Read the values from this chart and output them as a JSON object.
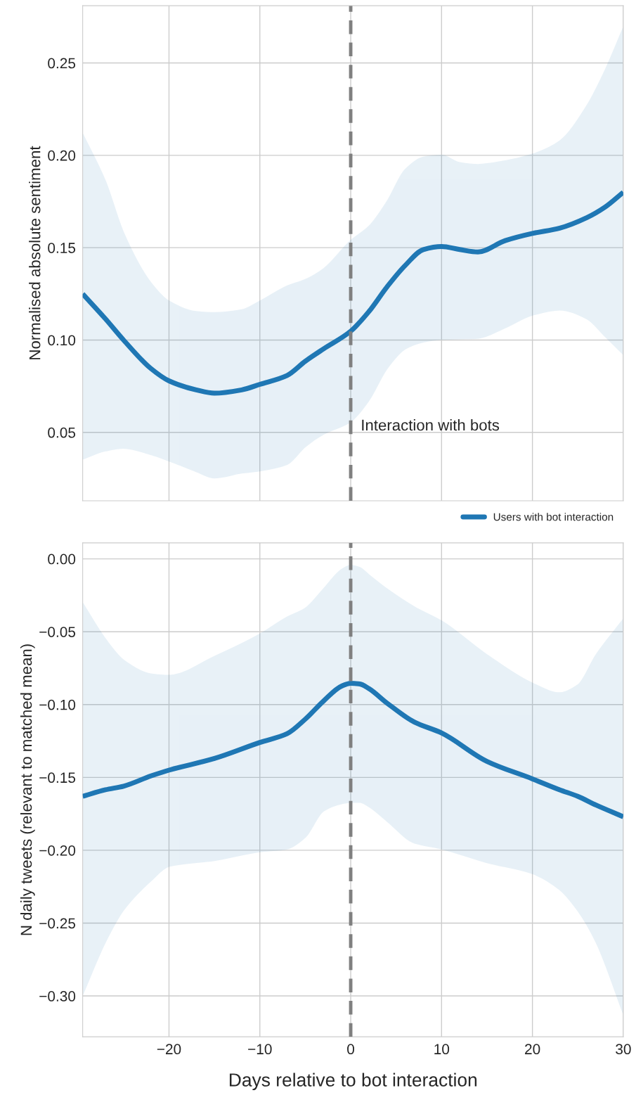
{
  "chart_data": [
    {
      "type": "line",
      "ylabel": "Normalised absolute sentiment",
      "xlim": [
        -29.5,
        30
      ],
      "ylim": [
        0.013,
        0.281
      ],
      "xticks": [
        -20,
        -10,
        0,
        10,
        20,
        30
      ],
      "yticks": [
        0.05,
        {
          "value": 0.1,
          "label": "0.10"
        },
        0.15,
        {
          "value": 0.2,
          "label": "0.20"
        },
        0.25
      ],
      "tick_labels": "y",
      "grid": true,
      "legend": "bottom right",
      "line_style": "solid",
      "series": [
        {
          "name": "Users with bot interaction",
          "color": "#1f77b4",
          "x": [
            -29.5,
            -27,
            -25,
            -22,
            -20,
            -17,
            -15,
            -12,
            -10,
            -7,
            -5,
            -3,
            0,
            2,
            4,
            6,
            8,
            10,
            12,
            14,
            17,
            20,
            23,
            26,
            28,
            30
          ],
          "values": [
            0.125,
            0.1115,
            0.1,
            0.0846,
            0.0779,
            0.073,
            0.0712,
            0.073,
            0.076,
            0.0808,
            0.0885,
            0.0952,
            0.1048,
            0.1154,
            0.1288,
            0.1404,
            0.149,
            0.1506,
            0.149,
            0.1477,
            0.1538,
            0.1577,
            0.1606,
            0.1663,
            0.172,
            0.18
          ],
          "lower": [
            0.0356,
            0.04,
            0.0415,
            0.038,
            0.0346,
            0.0288,
            0.0254,
            0.028,
            0.0292,
            0.0327,
            0.0423,
            0.049,
            0.0558,
            0.0673,
            0.0846,
            0.0952,
            0.099,
            0.1004,
            0.1007,
            0.101,
            0.1067,
            0.1135,
            0.1163,
            0.1115,
            0.102,
            0.0923
          ],
          "upper": [
            0.2115,
            0.186,
            0.158,
            0.131,
            0.121,
            0.1154,
            0.1148,
            0.1163,
            0.121,
            0.1292,
            0.1327,
            0.1385,
            0.1538,
            0.1615,
            0.175,
            0.1923,
            0.199,
            0.2,
            0.196,
            0.195,
            0.197,
            0.2006,
            0.2077,
            0.2269,
            0.246,
            0.269
          ]
        }
      ],
      "ref_lines": [
        {
          "axis": "x",
          "value": 0,
          "label": "Interaction with bots",
          "color": "#808080",
          "line_style": "dashed"
        }
      ]
    },
    {
      "type": "line",
      "ylabel": "N daily tweets (relevant to matched mean)",
      "xlabel": "Days relative to bot interaction",
      "xlim": [
        -29.5,
        30
      ],
      "ylim": [
        -0.328,
        0.011
      ],
      "xticks": [
        {
          "value": -20,
          "label": "−20"
        },
        {
          "value": -10,
          "label": "−10"
        },
        0,
        10,
        20,
        30
      ],
      "yticks": [
        {
          "value": 0.0,
          "label": "0.00"
        },
        {
          "value": -0.05,
          "label": "−0.05"
        },
        {
          "value": -0.1,
          "label": "−0.10"
        },
        {
          "value": -0.15,
          "label": "−0.15"
        },
        {
          "value": -0.2,
          "label": "−0.20"
        },
        {
          "value": -0.25,
          "label": "−0.25"
        },
        {
          "value": -0.3,
          "label": "−0.30"
        }
      ],
      "grid": true,
      "line_style": "solid",
      "series": [
        {
          "color": "#1f77b4",
          "x": [
            -29.5,
            -27,
            -25,
            -22,
            -20,
            -15,
            -10,
            -7,
            -5,
            -3,
            -1,
            0,
            1,
            2,
            4,
            7,
            10,
            15,
            20,
            23,
            25,
            27,
            30
          ],
          "values": [
            -0.163,
            -0.1585,
            -0.156,
            -0.149,
            -0.145,
            -0.137,
            -0.126,
            -0.12,
            -0.11,
            -0.0976,
            -0.0873,
            -0.0854,
            -0.0859,
            -0.089,
            -0.099,
            -0.112,
            -0.1195,
            -0.139,
            -0.151,
            -0.1585,
            -0.163,
            -0.169,
            -0.177
          ],
          "lower": [
            -0.299,
            -0.263,
            -0.241,
            -0.221,
            -0.211,
            -0.207,
            -0.201,
            -0.199,
            -0.191,
            -0.173,
            -0.168,
            -0.167,
            -0.167,
            -0.17,
            -0.18,
            -0.195,
            -0.199,
            -0.2085,
            -0.216,
            -0.227,
            -0.2415,
            -0.263,
            -0.312
          ],
          "upper": [
            -0.0305,
            -0.055,
            -0.0695,
            -0.079,
            -0.08,
            -0.067,
            -0.0517,
            -0.04,
            -0.034,
            -0.0207,
            -0.0073,
            -0.0044,
            -0.006,
            -0.011,
            -0.0207,
            -0.033,
            -0.0427,
            -0.0659,
            -0.0854,
            -0.092,
            -0.0866,
            -0.0659,
            -0.0415
          ]
        }
      ],
      "ref_lines": [
        {
          "axis": "x",
          "value": 0,
          "color": "#808080",
          "line_style": "dashed"
        }
      ]
    }
  ]
}
